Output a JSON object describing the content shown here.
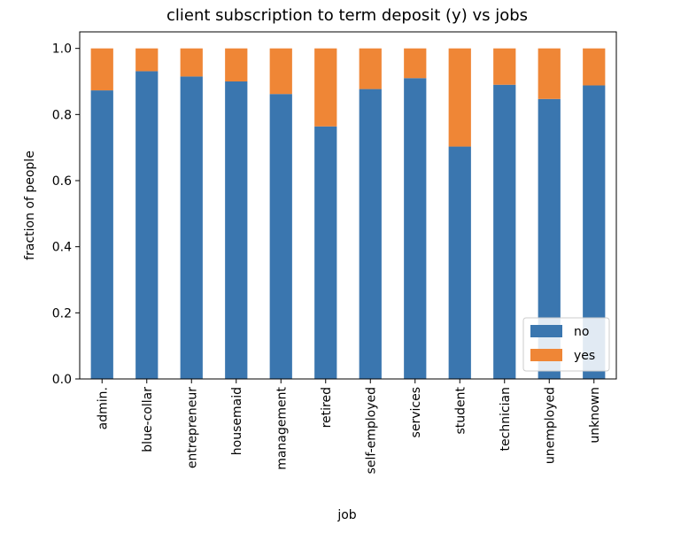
{
  "chart_data": {
    "type": "bar",
    "stacked": true,
    "title": "client subscription to term deposit (y) vs jobs",
    "xlabel": "job",
    "ylabel": "fraction of people",
    "ylim": [
      0,
      1.05
    ],
    "yticks": [
      "0.0",
      "0.2",
      "0.4",
      "0.6",
      "0.8",
      "1.0"
    ],
    "categories": [
      "admin.",
      "blue-collar",
      "entrepreneur",
      "housemaid",
      "management",
      "retired",
      "self-employed",
      "services",
      "student",
      "technician",
      "unemployed",
      "unknown"
    ],
    "series": [
      {
        "name": "no",
        "color": "#3a76af",
        "values": [
          0.873,
          0.931,
          0.915,
          0.9,
          0.862,
          0.764,
          0.877,
          0.91,
          0.703,
          0.89,
          0.847,
          0.888
        ]
      },
      {
        "name": "yes",
        "color": "#ef8636",
        "values": [
          0.127,
          0.069,
          0.085,
          0.1,
          0.138,
          0.236,
          0.123,
          0.09,
          0.297,
          0.11,
          0.153,
          0.112
        ]
      }
    ],
    "legend": "lower right",
    "grid": false
  }
}
